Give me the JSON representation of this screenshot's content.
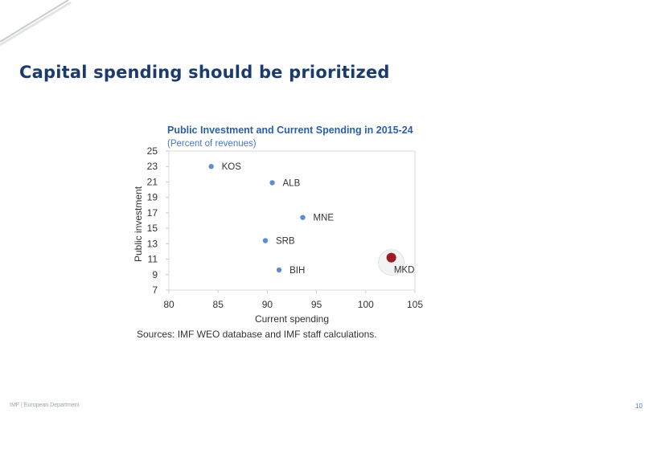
{
  "slide": {
    "title": "Capital spending should be prioritized",
    "footer_org": "IMF",
    "footer_sep": "|",
    "footer_dept": "European Department",
    "page_number": "10"
  },
  "colors": {
    "title": "#1b3b6f",
    "chart_title": "#2b5fa8",
    "subtitle": "#4a78b8",
    "point": "#5b8fd0",
    "highlight": "#9b1c24"
  },
  "chart_data": {
    "type": "scatter",
    "title": "Public Investment and Current Spending in 2015-24",
    "subtitle": "(Percent of revenues)",
    "xlabel": "Current spending",
    "ylabel": "Public investment",
    "xlim": [
      80,
      105
    ],
    "ylim": [
      7,
      25
    ],
    "xticks": [
      80,
      85,
      90,
      95,
      100,
      105
    ],
    "yticks": [
      7,
      9,
      11,
      13,
      15,
      17,
      19,
      21,
      23,
      25
    ],
    "points": [
      {
        "label": "KOS",
        "x": 84.3,
        "y": 23.0,
        "highlight": false
      },
      {
        "label": "ALB",
        "x": 90.5,
        "y": 20.9,
        "highlight": false
      },
      {
        "label": "MNE",
        "x": 93.6,
        "y": 16.4,
        "highlight": false
      },
      {
        "label": "SRB",
        "x": 89.8,
        "y": 13.4,
        "highlight": false
      },
      {
        "label": "BIH",
        "x": 91.2,
        "y": 9.6,
        "highlight": false
      },
      {
        "label": "MKD",
        "x": 102.6,
        "y": 11.2,
        "highlight": true
      }
    ],
    "source": "Sources: IMF WEO database and IMF staff calculations."
  }
}
